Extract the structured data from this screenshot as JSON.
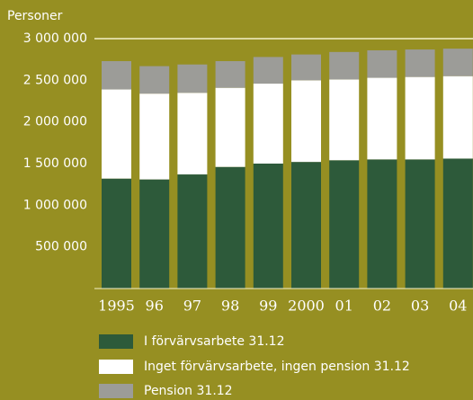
{
  "chart_data": {
    "type": "stacked-bar",
    "y_label": "Personer",
    "categories": [
      "1995",
      "96",
      "97",
      "98",
      "99",
      "2000",
      "01",
      "02",
      "03",
      "04"
    ],
    "series": [
      {
        "name": "I förvärvsarbete 31.12",
        "color": "#2d5a3a",
        "values": [
          1320000,
          1310000,
          1370000,
          1460000,
          1500000,
          1520000,
          1540000,
          1550000,
          1550000,
          1560000
        ]
      },
      {
        "name": "Inget förvärvsarbete, ingen pension 31.12",
        "color": "#ffffff",
        "values": [
          1070000,
          1030000,
          980000,
          950000,
          960000,
          980000,
          970000,
          980000,
          990000,
          990000
        ]
      },
      {
        "name": "Pension 31.12",
        "color": "#9c9c98",
        "values": [
          340000,
          330000,
          340000,
          320000,
          320000,
          310000,
          330000,
          330000,
          330000,
          330000
        ]
      }
    ],
    "ylim": [
      0,
      3000000
    ],
    "yticks": [
      {
        "value": 500000,
        "label": "500 000"
      },
      {
        "value": 1000000,
        "label": "1 000 000"
      },
      {
        "value": 1500000,
        "label": "1 500 000"
      },
      {
        "value": 2000000,
        "label": "2 000 000"
      },
      {
        "value": 2500000,
        "label": "2 500 000"
      },
      {
        "value": 3000000,
        "label": "3 000 000"
      }
    ]
  }
}
